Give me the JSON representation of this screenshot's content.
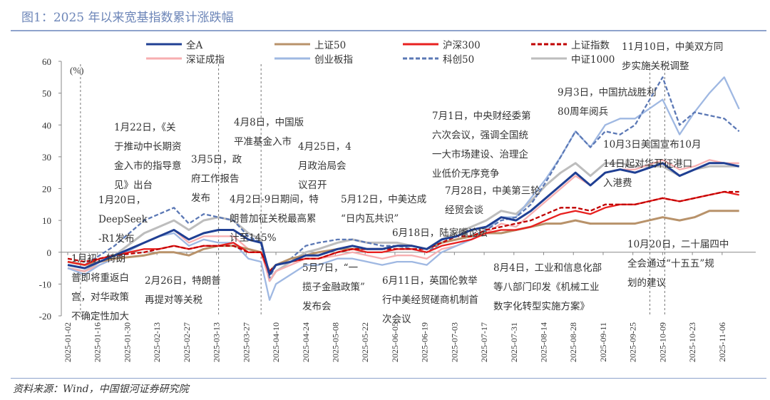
{
  "title": "图1：2025 年以来宽基指数累计涨跌幅",
  "source": "资料来源：Wind，中国银河证券研究院",
  "chart_data": {
    "type": "line",
    "title": "2025 年以来宽基指数累计涨跌幅",
    "ylabel": "(%)",
    "ylim": [
      -20,
      60
    ],
    "yticks": [
      60,
      50,
      40,
      30,
      20,
      10,
      0,
      -10,
      -20
    ],
    "xticks": [
      "2025-01-02",
      "2025-01-16",
      "2025-01-30",
      "2025-02-13",
      "2025-02-27",
      "2025-03-13",
      "2025-03-27",
      "2025-04-10",
      "2025-04-24",
      "2025-05-08",
      "2025-05-22",
      "2025-06-05",
      "2025-06-19",
      "2025-07-03",
      "2025-07-17",
      "2025-07-31",
      "2025-08-14",
      "2025-08-28",
      "2025-09-11",
      "2025-09-25",
      "2025-10-09",
      "2025-10-23",
      "2025-11-06"
    ],
    "legend_position": "top",
    "x": [
      "2025-01-02",
      "2025-01-10",
      "2025-01-17",
      "2025-01-24",
      "2025-02-07",
      "2025-02-14",
      "2025-02-21",
      "2025-02-28",
      "2025-03-07",
      "2025-03-14",
      "2025-03-21",
      "2025-03-28",
      "2025-04-03",
      "2025-04-07",
      "2025-04-10",
      "2025-04-17",
      "2025-04-24",
      "2025-04-30",
      "2025-05-09",
      "2025-05-16",
      "2025-05-23",
      "2025-05-30",
      "2025-06-06",
      "2025-06-13",
      "2025-06-20",
      "2025-06-27",
      "2025-07-04",
      "2025-07-11",
      "2025-07-18",
      "2025-07-25",
      "2025-08-01",
      "2025-08-08",
      "2025-08-15",
      "2025-08-22",
      "2025-08-29",
      "2025-09-05",
      "2025-09-12",
      "2025-09-19",
      "2025-09-26",
      "2025-10-09",
      "2025-10-17",
      "2025-10-24",
      "2025-10-31",
      "2025-11-07",
      "2025-11-14"
    ],
    "series": [
      {
        "name": "中证1000",
        "color": "#bdbdbd",
        "dash": false,
        "values": [
          -5,
          -6,
          -3,
          -1,
          6,
          8,
          10,
          7,
          10,
          11,
          10,
          6,
          4,
          -9,
          -6,
          -3,
          0,
          1,
          3,
          4,
          3,
          3,
          3,
          2,
          1,
          4,
          6,
          8,
          10,
          13,
          12,
          16,
          21,
          25,
          28,
          24,
          28,
          28,
          27,
          27,
          24,
          26,
          27,
          27,
          27
        ]
      },
      {
        "name": "深证成指",
        "color": "#f7aeb0",
        "dash": false,
        "values": [
          -5,
          -6,
          -4,
          -2,
          3,
          5,
          7,
          3,
          5,
          5,
          5,
          1,
          0,
          -9,
          -6,
          -4,
          -2,
          -2,
          -1,
          0,
          -1,
          -2,
          -1,
          -1,
          -2,
          1,
          2,
          4,
          6,
          9,
          8,
          12,
          16,
          20,
          24,
          21,
          25,
          26,
          26,
          29,
          26,
          27,
          29,
          28,
          28
        ]
      },
      {
        "name": "创业板指",
        "color": "#9fb8e2",
        "dash": false,
        "values": [
          -5,
          -7,
          -4,
          -2,
          3,
          5,
          6,
          2,
          4,
          3,
          3,
          -2,
          -3,
          -15,
          -10,
          -7,
          -4,
          -4,
          -2,
          -2,
          -3,
          -4,
          -3,
          -3,
          -4,
          0,
          2,
          4,
          7,
          11,
          11,
          17,
          23,
          30,
          38,
          33,
          40,
          42,
          42,
          48,
          37,
          44,
          50,
          55,
          45
        ]
      },
      {
        "name": "科创50",
        "color": "#5b78b5",
        "dash": true,
        "values": [
          -3,
          -4,
          -1,
          2,
          10,
          12,
          14,
          9,
          12,
          11,
          10,
          5,
          3,
          -8,
          -4,
          -2,
          2,
          3,
          4,
          4,
          3,
          2,
          2,
          1,
          0,
          3,
          4,
          5,
          7,
          10,
          11,
          15,
          22,
          30,
          38,
          33,
          38,
          37,
          40,
          55,
          40,
          44,
          43,
          42,
          38
        ]
      },
      {
        "name": "上证50",
        "color": "#b8926a",
        "dash": false,
        "values": [
          -3,
          -4,
          -3,
          -2,
          -1,
          0,
          0,
          -1,
          1,
          2,
          2,
          1,
          0,
          -6,
          -4,
          -2,
          -1,
          0,
          1,
          1,
          1,
          1,
          2,
          2,
          1,
          3,
          4,
          5,
          6,
          6,
          7,
          8,
          9,
          9,
          10,
          9,
          9,
          9,
          9,
          11,
          10,
          11,
          13,
          13,
          13
        ]
      },
      {
        "name": "沪深300",
        "color": "#e8201f",
        "dash": false,
        "values": [
          -3,
          -4,
          -2,
          -1,
          1,
          1,
          2,
          1,
          2,
          2,
          3,
          0,
          0,
          -7,
          -4,
          -3,
          -2,
          -2,
          0,
          1,
          0,
          0,
          1,
          1,
          0,
          2,
          3,
          4,
          6,
          7,
          7,
          8,
          10,
          12,
          13,
          12,
          14,
          15,
          15,
          17,
          16,
          17,
          18,
          19,
          18
        ]
      },
      {
        "name": "上证指数",
        "color": "#c00000",
        "dash": true,
        "values": [
          -2,
          -3,
          -2,
          -1,
          0,
          1,
          2,
          1,
          2,
          2,
          2,
          0,
          0,
          -6,
          -4,
          -3,
          -2,
          -2,
          0,
          1,
          1,
          1,
          1,
          1,
          1,
          3,
          5,
          5,
          7,
          8,
          9,
          10,
          12,
          14,
          14,
          13,
          15,
          15,
          15,
          17,
          16,
          17,
          18,
          19,
          19
        ]
      },
      {
        "name": "全A",
        "color": "#1f3f93",
        "dash": false,
        "values": [
          -4,
          -5,
          -3,
          -1,
          3,
          5,
          7,
          4,
          6,
          7,
          7,
          4,
          3,
          -7,
          -4,
          -3,
          -1,
          -1,
          1,
          2,
          1,
          1,
          2,
          2,
          1,
          4,
          5,
          7,
          8,
          11,
          10,
          13,
          17,
          21,
          25,
          21,
          25,
          26,
          25,
          28,
          24,
          26,
          28,
          28,
          27
        ]
      }
    ],
    "legend_order": [
      "全A",
      "上证50",
      "沪深300",
      "上证指数",
      "深证成指",
      "创业板指",
      "科创50",
      "中证1000"
    ],
    "event_lines": [
      "2025-01-08",
      "2025-03-14",
      "2025-04-03",
      "2025-10-03",
      "2025-10-10"
    ]
  },
  "annotations": [
    [
      "1月22日，《关",
      "于推动中长期资",
      "金入市的指导意",
      "见》出台"
    ],
    [
      "1月20日，",
      "DeepSeek",
      "-R1发布"
    ],
    [
      "3月5日，政",
      "府工作报告",
      "发布"
    ],
    [
      "4月8日，中国版",
      "平准基金入市"
    ],
    [
      "4月25日，4",
      "月政治局会",
      "议召开"
    ],
    [
      "4月2日-9日期间，特",
      "朗普加征关税最高累",
      "计至145%"
    ],
    [
      "5月12日，中美达成",
      "“日内瓦共识”"
    ],
    [
      "6月18日，陆家嘴论坛"
    ],
    [
      "7月1日，中央财经委第",
      "六次会议，强调全国统",
      "一大市场建设、治理企",
      "业低价无序竞争"
    ],
    [
      "7月28日，中美第三轮",
      "经贸会谈"
    ],
    [
      "9月3日，中国抗战胜利",
      "80周年阅兵"
    ],
    [
      "11月10日，中美双方同",
      "步实施关税调整"
    ],
    [
      "10月3日美国宣布10月",
      "14日起对华开征港口",
      "入港费"
    ],
    [
      "1月初，特朗",
      "普即将重返白",
      "宫，对华政策",
      "不确定性加大"
    ],
    [
      "2月26日，特朗普",
      "再提对等关税"
    ],
    [
      "5月7日，“一",
      "揽子金融政策”",
      "发布会"
    ],
    [
      "6月11日，英国伦敦举",
      "行中美经贸磋商机制首",
      "次会议"
    ],
    [
      "8月4日，工业和信息化部",
      "等八部门印发《机械工业",
      "数字化转型实施方案》"
    ],
    [
      "10月20日，二十届四中",
      "全会通过“十五五”规",
      "划的建议"
    ]
  ]
}
